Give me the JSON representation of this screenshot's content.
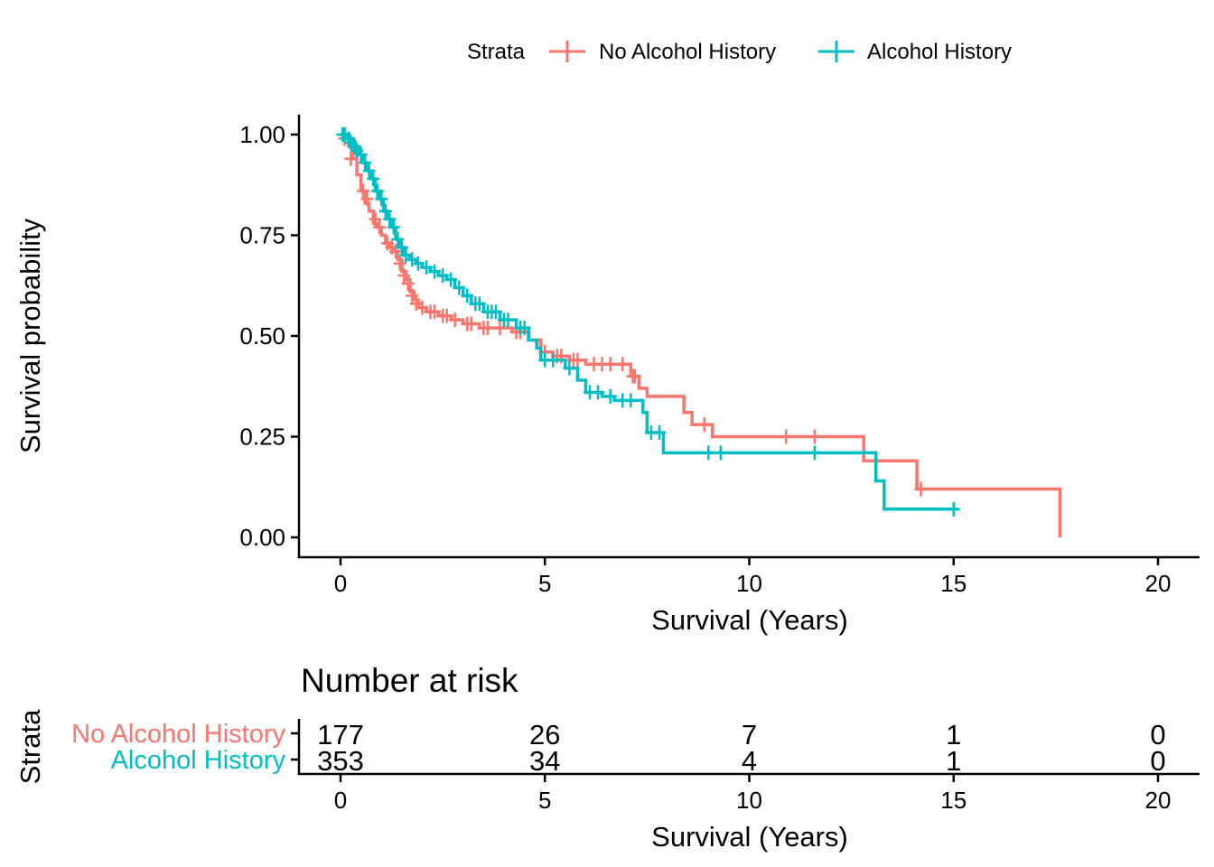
{
  "legend": {
    "title": "Strata",
    "placement": "top"
  },
  "chart_data": {
    "type": "line",
    "subtype": "kaplan-meier",
    "title": "",
    "xlabel": "Survival (Years)",
    "ylabel": "Survival probability",
    "xlim": [
      0,
      20
    ],
    "ylim": [
      0,
      1
    ],
    "xticks": [
      "0",
      "5",
      "10",
      "15",
      "20"
    ],
    "yticks": [
      "0.00",
      "0.25",
      "0.50",
      "0.75",
      "1.00"
    ],
    "xtick_values": [
      0,
      5,
      10,
      15,
      20
    ],
    "ytick_values": [
      0,
      0.25,
      0.5,
      0.75,
      1.0
    ],
    "grid": false,
    "series": [
      {
        "name": "No Alcohol History",
        "color": "#F8766D",
        "steps": [
          [
            0,
            1.0
          ],
          [
            0.2,
            0.97
          ],
          [
            0.3,
            0.94
          ],
          [
            0.4,
            0.9
          ],
          [
            0.5,
            0.86
          ],
          [
            0.6,
            0.83
          ],
          [
            0.7,
            0.81
          ],
          [
            0.8,
            0.78
          ],
          [
            0.9,
            0.77
          ],
          [
            1.0,
            0.75
          ],
          [
            1.1,
            0.73
          ],
          [
            1.2,
            0.72
          ],
          [
            1.3,
            0.71
          ],
          [
            1.4,
            0.69
          ],
          [
            1.5,
            0.66
          ],
          [
            1.6,
            0.64
          ],
          [
            1.7,
            0.61
          ],
          [
            1.8,
            0.59
          ],
          [
            1.9,
            0.57
          ],
          [
            2.1,
            0.56
          ],
          [
            2.4,
            0.55
          ],
          [
            2.7,
            0.54
          ],
          [
            3.0,
            0.53
          ],
          [
            3.4,
            0.52
          ],
          [
            3.8,
            0.52
          ],
          [
            4.2,
            0.51
          ],
          [
            4.6,
            0.49
          ],
          [
            4.9,
            0.46
          ],
          [
            5.2,
            0.45
          ],
          [
            5.6,
            0.44
          ],
          [
            6.0,
            0.43
          ],
          [
            7.1,
            0.4
          ],
          [
            7.3,
            0.37
          ],
          [
            7.5,
            0.35
          ],
          [
            8.4,
            0.31
          ],
          [
            8.6,
            0.28
          ],
          [
            9.1,
            0.25
          ],
          [
            12.8,
            0.19
          ],
          [
            14.1,
            0.12
          ],
          [
            17.6,
            0.0
          ]
        ],
        "end": 17.6,
        "censored": [
          [
            0.1,
            0.99
          ],
          [
            0.25,
            0.94
          ],
          [
            0.55,
            0.86
          ],
          [
            0.65,
            0.84
          ],
          [
            0.85,
            0.79
          ],
          [
            0.95,
            0.77
          ],
          [
            1.15,
            0.73
          ],
          [
            1.25,
            0.72
          ],
          [
            1.35,
            0.71
          ],
          [
            1.45,
            0.68
          ],
          [
            1.55,
            0.65
          ],
          [
            1.65,
            0.63
          ],
          [
            1.75,
            0.6
          ],
          [
            1.85,
            0.58
          ],
          [
            2.0,
            0.57
          ],
          [
            2.2,
            0.56
          ],
          [
            2.3,
            0.56
          ],
          [
            2.5,
            0.55
          ],
          [
            2.6,
            0.55
          ],
          [
            2.8,
            0.54
          ],
          [
            3.1,
            0.53
          ],
          [
            3.2,
            0.53
          ],
          [
            3.5,
            0.52
          ],
          [
            3.6,
            0.52
          ],
          [
            3.9,
            0.52
          ],
          [
            4.3,
            0.51
          ],
          [
            4.4,
            0.51
          ],
          [
            5.0,
            0.46
          ],
          [
            5.3,
            0.45
          ],
          [
            5.4,
            0.45
          ],
          [
            5.7,
            0.44
          ],
          [
            5.8,
            0.44
          ],
          [
            6.2,
            0.43
          ],
          [
            6.4,
            0.43
          ],
          [
            6.6,
            0.43
          ],
          [
            6.9,
            0.43
          ],
          [
            7.15,
            0.4
          ],
          [
            7.2,
            0.4
          ],
          [
            8.9,
            0.28
          ],
          [
            10.9,
            0.25
          ],
          [
            11.6,
            0.25
          ],
          [
            14.2,
            0.12
          ]
        ]
      },
      {
        "name": "Alcohol History",
        "color": "#00BFC4",
        "steps": [
          [
            0,
            1.0
          ],
          [
            0.15,
            0.99
          ],
          [
            0.3,
            0.97
          ],
          [
            0.45,
            0.95
          ],
          [
            0.55,
            0.93
          ],
          [
            0.65,
            0.91
          ],
          [
            0.75,
            0.89
          ],
          [
            0.85,
            0.86
          ],
          [
            0.95,
            0.84
          ],
          [
            1.05,
            0.81
          ],
          [
            1.15,
            0.79
          ],
          [
            1.25,
            0.77
          ],
          [
            1.35,
            0.74
          ],
          [
            1.45,
            0.72
          ],
          [
            1.55,
            0.7
          ],
          [
            1.7,
            0.69
          ],
          [
            1.85,
            0.68
          ],
          [
            2.0,
            0.67
          ],
          [
            2.2,
            0.66
          ],
          [
            2.4,
            0.65
          ],
          [
            2.6,
            0.64
          ],
          [
            2.8,
            0.62
          ],
          [
            3.0,
            0.6
          ],
          [
            3.2,
            0.58
          ],
          [
            3.5,
            0.56
          ],
          [
            3.9,
            0.54
          ],
          [
            4.3,
            0.52
          ],
          [
            4.6,
            0.49
          ],
          [
            4.8,
            0.47
          ],
          [
            4.9,
            0.44
          ],
          [
            5.5,
            0.42
          ],
          [
            5.8,
            0.39
          ],
          [
            6.0,
            0.36
          ],
          [
            6.4,
            0.35
          ],
          [
            6.7,
            0.34
          ],
          [
            7.4,
            0.31
          ],
          [
            7.5,
            0.26
          ],
          [
            7.9,
            0.21
          ],
          [
            12.8,
            0.21
          ],
          [
            13.1,
            0.14
          ],
          [
            13.3,
            0.07
          ]
        ],
        "end": 15.1,
        "censored": [
          [
            0.05,
            1.0
          ],
          [
            0.1,
            1.0
          ],
          [
            0.2,
            0.99
          ],
          [
            0.25,
            0.98
          ],
          [
            0.35,
            0.97
          ],
          [
            0.4,
            0.96
          ],
          [
            0.5,
            0.95
          ],
          [
            0.6,
            0.93
          ],
          [
            0.7,
            0.91
          ],
          [
            0.8,
            0.89
          ],
          [
            0.9,
            0.86
          ],
          [
            1.0,
            0.84
          ],
          [
            1.1,
            0.81
          ],
          [
            1.2,
            0.79
          ],
          [
            1.3,
            0.77
          ],
          [
            1.4,
            0.74
          ],
          [
            1.5,
            0.72
          ],
          [
            1.6,
            0.7
          ],
          [
            1.75,
            0.69
          ],
          [
            1.9,
            0.68
          ],
          [
            2.1,
            0.67
          ],
          [
            2.3,
            0.66
          ],
          [
            2.5,
            0.65
          ],
          [
            2.7,
            0.64
          ],
          [
            2.9,
            0.62
          ],
          [
            3.1,
            0.6
          ],
          [
            3.3,
            0.58
          ],
          [
            3.4,
            0.58
          ],
          [
            3.6,
            0.56
          ],
          [
            3.7,
            0.56
          ],
          [
            3.8,
            0.56
          ],
          [
            4.0,
            0.54
          ],
          [
            4.1,
            0.54
          ],
          [
            4.4,
            0.52
          ],
          [
            4.5,
            0.52
          ],
          [
            5.0,
            0.44
          ],
          [
            5.2,
            0.44
          ],
          [
            5.6,
            0.42
          ],
          [
            6.1,
            0.36
          ],
          [
            6.3,
            0.36
          ],
          [
            6.6,
            0.35
          ],
          [
            6.9,
            0.34
          ],
          [
            7.1,
            0.34
          ],
          [
            7.6,
            0.26
          ],
          [
            7.8,
            0.26
          ],
          [
            9.0,
            0.21
          ],
          [
            9.3,
            0.21
          ],
          [
            11.6,
            0.21
          ],
          [
            15.0,
            0.07
          ]
        ]
      }
    ]
  },
  "risk_table": {
    "title": "Number at risk",
    "ylabel": "Strata",
    "xlabel": "Survival (Years)",
    "xticks": [
      "0",
      "5",
      "10",
      "15",
      "20"
    ],
    "times": [
      0,
      5,
      10,
      15,
      20
    ],
    "rows": [
      {
        "name": "No Alcohol History",
        "color": "#F8766D",
        "counts": [
          "177",
          "26",
          "7",
          "1",
          "0"
        ]
      },
      {
        "name": "Alcohol History",
        "color": "#00BFC4",
        "counts": [
          "353",
          "34",
          "4",
          "1",
          "0"
        ]
      }
    ]
  }
}
